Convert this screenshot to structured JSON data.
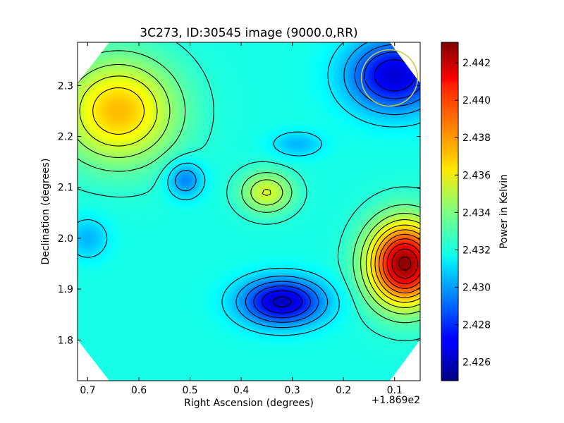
{
  "chart_data": {
    "type": "heatmap",
    "title": "3C273, ID:30545 image (9000.0,RR)",
    "xlabel": "Right Ascension (degrees)",
    "ylabel": "Declination (degrees)",
    "x_offset_label": "+1.869e2",
    "colorbar_label": "Power in Kelvin",
    "xlim": [
      0.72,
      0.05
    ],
    "ylim": [
      1.72,
      2.385
    ],
    "x_ticks": [
      0.7,
      0.6,
      0.5,
      0.4,
      0.3,
      0.2,
      0.1
    ],
    "x_tick_labels": [
      "0.7",
      "0.6",
      "0.5",
      "0.4",
      "0.3",
      "0.2",
      "0.1"
    ],
    "y_ticks": [
      1.8,
      1.9,
      2.0,
      2.1,
      2.2,
      2.3
    ],
    "y_tick_labels": [
      "1.8",
      "1.9",
      "2.0",
      "2.1",
      "2.2",
      "2.3"
    ],
    "colorbar_range": [
      2.425,
      2.4431
    ],
    "colorbar_ticks": [
      2.426,
      2.428,
      2.43,
      2.432,
      2.434,
      2.436,
      2.438,
      2.44,
      2.442
    ],
    "colorbar_tick_labels": [
      "2.426",
      "2.428",
      "2.430",
      "2.432",
      "2.434",
      "2.436",
      "2.438",
      "2.440",
      "2.442"
    ],
    "colormap": "jet",
    "contour_color": "#000000",
    "features": [
      {
        "kind": "max",
        "x": 0.64,
        "y": 2.25,
        "value": 2.4375,
        "sx": 0.11,
        "sy": 0.1
      },
      {
        "kind": "max",
        "x": 0.08,
        "y": 1.95,
        "value": 2.4428,
        "sx": 0.07,
        "sy": 0.08
      },
      {
        "kind": "max",
        "x": 0.35,
        "y": 2.09,
        "value": 2.4356,
        "sx": 0.05,
        "sy": 0.04
      },
      {
        "kind": "min",
        "x": 0.32,
        "y": 1.875,
        "value": 2.4262,
        "sx": 0.08,
        "sy": 0.045
      },
      {
        "kind": "min",
        "x": 0.1,
        "y": 2.32,
        "value": 2.4265,
        "sx": 0.09,
        "sy": 0.07
      },
      {
        "kind": "min",
        "x": 0.51,
        "y": 2.115,
        "value": 2.4295,
        "sx": 0.035,
        "sy": 0.035
      },
      {
        "kind": "min",
        "x": 0.29,
        "y": 2.185,
        "value": 2.4305,
        "sx": 0.05,
        "sy": 0.025
      },
      {
        "kind": "min",
        "x": 0.7,
        "y": 2.0,
        "value": 2.4305,
        "sx": 0.04,
        "sy": 0.04
      }
    ],
    "beam_marker": {
      "shape": "circle",
      "x": 0.11,
      "y": 2.315,
      "radius_deg": 0.055,
      "color": "#c8c84a"
    }
  }
}
